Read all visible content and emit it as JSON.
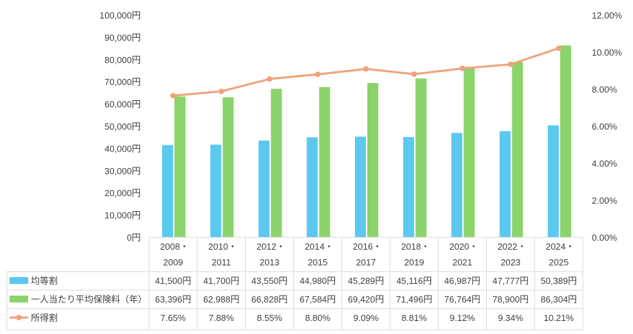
{
  "colors": {
    "kintouwari": "#5bc8f0",
    "hokenryo": "#8bd36b",
    "shotokuwari": "#f0a27a",
    "grid": "#d9d9d9",
    "text": "#404040"
  },
  "chart_data": {
    "type": "bar",
    "categories": [
      [
        "2008・",
        "2009"
      ],
      [
        "2010・",
        "2011"
      ],
      [
        "2012・",
        "2013"
      ],
      [
        "2014・",
        "2015"
      ],
      [
        "2016・",
        "2017"
      ],
      [
        "2018・",
        "2019"
      ],
      [
        "2020・",
        "2021"
      ],
      [
        "2022・",
        "2023"
      ],
      [
        "2024・",
        "2025"
      ]
    ],
    "series": [
      {
        "name": "均等割",
        "kind": "bar",
        "axis": "left",
        "values": [
          41500,
          41700,
          43550,
          44980,
          45289,
          45116,
          46987,
          47777,
          50389
        ],
        "labels": [
          "41,500円",
          "41,700円",
          "43,550円",
          "44,980円",
          "45,289円",
          "45,116円",
          "46,987円",
          "47,777円",
          "50,389円"
        ]
      },
      {
        "name": "一人当たり平均保険料（年）",
        "kind": "bar",
        "axis": "left",
        "values": [
          63396,
          62988,
          66828,
          67584,
          69420,
          71496,
          76764,
          78900,
          86304
        ],
        "labels": [
          "63,396円",
          "62,988円",
          "66,828円",
          "67,584円",
          "69,420円",
          "71,496円",
          "76,764円",
          "78,900円",
          "86,304円"
        ]
      },
      {
        "name": "所得割",
        "kind": "line",
        "axis": "right",
        "values": [
          7.65,
          7.88,
          8.55,
          8.8,
          9.09,
          8.81,
          9.12,
          9.34,
          10.21
        ],
        "labels": [
          "7.65%",
          "7.88%",
          "8.55%",
          "8.80%",
          "9.09%",
          "8.81%",
          "9.12%",
          "9.34%",
          "10.21%"
        ]
      }
    ],
    "ylim_left": [
      0,
      100000
    ],
    "ylim_right": [
      0,
      12
    ],
    "y_ticks_left": [
      "0円",
      "10,000円",
      "20,000円",
      "30,000円",
      "40,000円",
      "50,000円",
      "60,000円",
      "70,000円",
      "80,000円",
      "90,000円",
      "100,000円"
    ],
    "y_ticks_right": [
      "0.00%",
      "2.00%",
      "4.00%",
      "6.00%",
      "8.00%",
      "10.00%",
      "12.00%"
    ],
    "grid": false,
    "legend": "data-table-below"
  }
}
